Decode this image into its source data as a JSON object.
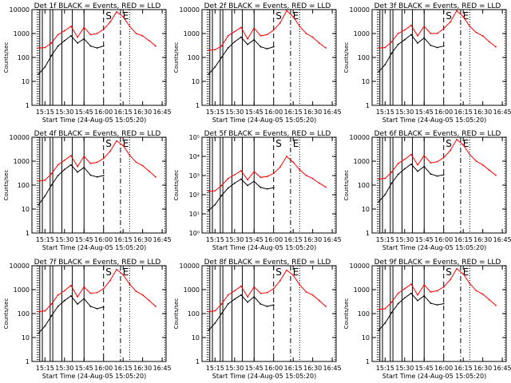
{
  "chart_data": [
    {
      "type": "line",
      "title": "Det 1f BLACK = Events, RED = LLD",
      "xlabel": "Start Time (24-Aug-05 15:05:20)",
      "ylabel": "Counts/sec",
      "yscale": "log",
      "yticks": [
        "1",
        "10",
        "100",
        "1000",
        "10000"
      ],
      "xticks": [
        "15:15",
        "15:30",
        "15:45",
        "16:00",
        "16:15",
        "16:30",
        "16:45"
      ],
      "markers": [
        "S",
        "E"
      ],
      "series": [
        {
          "name": "LLD",
          "color": "#ff0000",
          "x": [
            "15:10",
            "15:15",
            "15:20",
            "15:25",
            "15:30",
            "15:35",
            "15:40",
            "15:45",
            "15:50",
            "15:55",
            "16:00",
            "16:05",
            "16:10",
            "16:15",
            "16:20",
            "16:25",
            "16:30",
            "16:35",
            "16:40"
          ],
          "y": [
            250,
            260,
            400,
            900,
            1300,
            2000,
            700,
            1800,
            900,
            1000,
            1500,
            3000,
            8000,
            5000,
            2000,
            1000,
            800,
            500,
            300
          ]
        },
        {
          "name": "Events",
          "color": "#000000",
          "x": [
            "15:10",
            "15:15",
            "15:20",
            "15:25",
            "15:30",
            "15:35",
            "15:40",
            "15:45",
            "15:50",
            "15:55",
            "16:00"
          ],
          "y": [
            20,
            40,
            120,
            300,
            500,
            800,
            400,
            600,
            300,
            250,
            300
          ]
        }
      ]
    },
    {
      "type": "line",
      "title": "Det 2f BLACK = Events, RED = LLD",
      "xlabel": "Start Time (24-Aug-05 15:05:20)",
      "ylabel": "Counts/sec",
      "yscale": "log",
      "yticks": [
        "1",
        "10",
        "100",
        "1000",
        "10000"
      ],
      "xticks": [
        "15:15",
        "15:30",
        "15:45",
        "16:00",
        "16:15",
        "16:30",
        "16:45"
      ],
      "markers": [
        "S",
        "E"
      ],
      "series": [
        {
          "name": "LLD",
          "color": "#ff0000",
          "x": [
            "15:10",
            "15:15",
            "15:20",
            "15:25",
            "15:30",
            "15:35",
            "15:40",
            "15:45",
            "15:50",
            "15:55",
            "16:00",
            "16:05",
            "16:10",
            "16:15",
            "16:20",
            "16:25",
            "16:30",
            "16:35",
            "16:40"
          ],
          "y": [
            200,
            210,
            300,
            800,
            1200,
            1800,
            600,
            1700,
            800,
            900,
            1400,
            2800,
            9000,
            5000,
            2000,
            1000,
            700,
            400,
            250
          ]
        },
        {
          "name": "Events",
          "color": "#000000",
          "x": [
            "15:10",
            "15:15",
            "15:20",
            "15:25",
            "15:30",
            "15:35",
            "15:40",
            "15:45",
            "15:50",
            "15:55",
            "16:00"
          ],
          "y": [
            20,
            40,
            100,
            250,
            450,
            700,
            350,
            550,
            280,
            230,
            280
          ]
        }
      ]
    },
    {
      "type": "line",
      "title": "Det 3f BLACK = Events, RED = LLD",
      "xlabel": "Start Time (24-Aug-05 15:05:20)",
      "ylabel": "Counts/sec",
      "yscale": "log",
      "yticks": [
        "1",
        "10",
        "100",
        "1000",
        "10000"
      ],
      "xticks": [
        "15:15",
        "15:30",
        "15:45",
        "16:00",
        "16:15",
        "16:30",
        "16:45"
      ],
      "markers": [
        "S",
        "E"
      ],
      "series": [
        {
          "name": "LLD",
          "color": "#ff0000",
          "x": [
            "15:10",
            "15:15",
            "15:20",
            "15:25",
            "15:30",
            "15:35",
            "15:40",
            "15:45",
            "15:50",
            "15:55",
            "16:00",
            "16:05",
            "16:10",
            "16:15",
            "16:20",
            "16:25",
            "16:30",
            "16:35",
            "16:40"
          ],
          "y": [
            250,
            260,
            450,
            1000,
            1400,
            2200,
            800,
            2000,
            1000,
            1000,
            1600,
            3000,
            9000,
            5000,
            2000,
            1100,
            800,
            450,
            280
          ]
        },
        {
          "name": "Events",
          "color": "#000000",
          "x": [
            "15:10",
            "15:15",
            "15:20",
            "15:25",
            "15:30",
            "15:35",
            "15:40",
            "15:45",
            "15:50",
            "15:55",
            "16:00"
          ],
          "y": [
            25,
            50,
            150,
            350,
            550,
            900,
            400,
            650,
            320,
            260,
            300
          ]
        }
      ]
    },
    {
      "type": "line",
      "title": "Det 4f BLACK = Events, RED = LLD",
      "xlabel": "Start Time (24-Aug-05 15:05:20)",
      "ylabel": "Counts/sec",
      "yscale": "log",
      "yticks": [
        "1",
        "10",
        "100",
        "1000",
        "10000"
      ],
      "xticks": [
        "15:15",
        "15:30",
        "15:45",
        "16:00",
        "16:15",
        "16:30",
        "16:45"
      ],
      "markers": [
        "S",
        "E"
      ],
      "series": [
        {
          "name": "LLD",
          "color": "#ff0000",
          "x": [
            "15:10",
            "15:15",
            "15:20",
            "15:25",
            "15:30",
            "15:35",
            "15:40",
            "15:45",
            "15:50",
            "15:55",
            "16:00",
            "16:05",
            "16:10",
            "16:15",
            "16:20",
            "16:25",
            "16:30",
            "16:35",
            "16:40"
          ],
          "y": [
            150,
            160,
            300,
            700,
            1100,
            1700,
            600,
            1600,
            800,
            900,
            1300,
            2600,
            7000,
            4500,
            1800,
            900,
            650,
            380,
            220
          ]
        },
        {
          "name": "Events",
          "color": "#000000",
          "x": [
            "15:10",
            "15:15",
            "15:20",
            "15:25",
            "15:30",
            "15:35",
            "15:40",
            "15:45",
            "15:50",
            "15:55",
            "16:00"
          ],
          "y": [
            15,
            35,
            100,
            250,
            450,
            700,
            350,
            550,
            260,
            220,
            250
          ]
        }
      ]
    },
    {
      "type": "line",
      "title": "Det 5f BLACK = Events, RED = LLD",
      "xlabel": "Start Time (24-Aug-05 15:05:20)",
      "ylabel": "Counts/sec",
      "yscale": "log",
      "yticks": [
        "10⁰",
        "10¹",
        "10²",
        "10³",
        "10⁴",
        "10⁵"
      ],
      "xticks": [
        "15:15",
        "15:30",
        "15:45",
        "16:00",
        "16:15",
        "16:30",
        "16:45"
      ],
      "markers": [
        "S",
        "E"
      ],
      "series": [
        {
          "name": "LLD",
          "color": "#ff0000",
          "x": [
            "15:10",
            "15:15",
            "15:20",
            "15:25",
            "15:30",
            "15:35",
            "15:40",
            "15:45",
            "15:50",
            "15:55",
            "16:00",
            "16:05",
            "16:10",
            "16:15",
            "16:20",
            "16:25",
            "16:30",
            "16:35",
            "16:40"
          ],
          "y": [
            150,
            160,
            300,
            700,
            1100,
            1800,
            600,
            1600,
            800,
            900,
            1300,
            2800,
            10000,
            5000,
            2000,
            1000,
            700,
            400,
            250
          ]
        },
        {
          "name": "Events",
          "color": "#000000",
          "x": [
            "15:10",
            "15:15",
            "15:20",
            "15:25",
            "15:30",
            "15:35",
            "15:40",
            "15:45",
            "15:50",
            "15:55",
            "16:00"
          ],
          "y": [
            15,
            30,
            90,
            220,
            400,
            650,
            300,
            500,
            240,
            200,
            230
          ]
        }
      ]
    },
    {
      "type": "line",
      "title": "Det 6f BLACK = Events, RED = LLD",
      "xlabel": "Start Time (24-Aug-05 15:05:20)",
      "ylabel": "Counts/sec",
      "yscale": "log",
      "yticks": [
        "1",
        "10",
        "100",
        "1000",
        "10000"
      ],
      "xticks": [
        "15:15",
        "15:30",
        "15:45",
        "16:00",
        "16:15",
        "16:30",
        "16:45"
      ],
      "markers": [
        "S",
        "E"
      ],
      "series": [
        {
          "name": "LLD",
          "color": "#ff0000",
          "x": [
            "15:10",
            "15:15",
            "15:20",
            "15:25",
            "15:30",
            "15:35",
            "15:40",
            "15:45",
            "15:50",
            "15:55",
            "16:00",
            "16:05",
            "16:10",
            "16:15",
            "16:20",
            "16:25",
            "16:30",
            "16:35",
            "16:40"
          ],
          "y": [
            180,
            190,
            350,
            800,
            1200,
            1900,
            700,
            1700,
            850,
            950,
            1400,
            2800,
            8000,
            4800,
            1900,
            1000,
            700,
            420,
            260
          ]
        },
        {
          "name": "Events",
          "color": "#000000",
          "x": [
            "15:10",
            "15:15",
            "15:20",
            "15:25",
            "15:30",
            "15:35",
            "15:40",
            "15:45",
            "15:50",
            "15:55",
            "16:00"
          ],
          "y": [
            20,
            40,
            120,
            280,
            480,
            750,
            380,
            600,
            290,
            240,
            270
          ]
        }
      ]
    },
    {
      "type": "line",
      "title": "Det 7f BLACK = Events, RED = LLD",
      "xlabel": "Start Time (24-Aug-05 15:05:20)",
      "ylabel": "Counts/sec",
      "yscale": "log",
      "yticks": [
        "1",
        "10",
        "100",
        "1000",
        "10000"
      ],
      "xticks": [
        "15:15",
        "15:30",
        "15:45",
        "16:00",
        "16:15",
        "16:30",
        "16:45"
      ],
      "markers": [
        "S",
        "E"
      ],
      "series": [
        {
          "name": "LLD",
          "color": "#ff0000",
          "x": [
            "15:10",
            "15:15",
            "15:20",
            "15:25",
            "15:30",
            "15:35",
            "15:40",
            "15:45",
            "15:50",
            "15:55",
            "16:00",
            "16:05",
            "16:10",
            "16:15",
            "16:20",
            "16:25",
            "16:30",
            "16:35",
            "16:40"
          ],
          "y": [
            120,
            130,
            250,
            600,
            900,
            1500,
            500,
            1300,
            700,
            750,
            1100,
            2400,
            7000,
            4200,
            1700,
            850,
            600,
            350,
            200
          ]
        },
        {
          "name": "Events",
          "color": "#000000",
          "x": [
            "15:10",
            "15:15",
            "15:20",
            "15:25",
            "15:30",
            "15:35",
            "15:40",
            "15:45",
            "15:50",
            "15:55",
            "16:00"
          ],
          "y": [
            15,
            30,
            80,
            200,
            350,
            550,
            250,
            420,
            200,
            160,
            190
          ]
        }
      ]
    },
    {
      "type": "line",
      "title": "Det 8f BLACK = Events, RED = LLD",
      "xlabel": "Start Time (24-Aug-05 15:05:20)",
      "ylabel": "Counts/sec",
      "yscale": "log",
      "yticks": [
        "1",
        "10",
        "100",
        "1000",
        "10000"
      ],
      "xticks": [
        "15:15",
        "15:30",
        "15:45",
        "16:00",
        "16:15",
        "16:30",
        "16:45"
      ],
      "markers": [
        "S",
        "E"
      ],
      "series": [
        {
          "name": "LLD",
          "color": "#ff0000",
          "x": [
            "15:10",
            "15:15",
            "15:20",
            "15:25",
            "15:30",
            "15:35",
            "15:40",
            "15:45",
            "15:50",
            "15:55",
            "16:00",
            "16:05",
            "16:10",
            "16:15",
            "16:20",
            "16:25",
            "16:30",
            "16:35",
            "16:40"
          ],
          "y": [
            120,
            130,
            250,
            600,
            900,
            1400,
            500,
            1300,
            700,
            750,
            1100,
            2400,
            6500,
            4000,
            1600,
            800,
            600,
            350,
            200
          ]
        },
        {
          "name": "Events",
          "color": "#000000",
          "x": [
            "15:10",
            "15:15",
            "15:20",
            "15:25",
            "15:30",
            "15:35",
            "15:40",
            "15:45",
            "15:50",
            "15:55",
            "16:00"
          ],
          "y": [
            20,
            40,
            100,
            250,
            400,
            600,
            300,
            500,
            250,
            200,
            230
          ]
        }
      ]
    },
    {
      "type": "line",
      "title": "Det 9f BLACK = Events, RED = LLD",
      "xlabel": "Start Time (24-Aug-05 15:05:20)",
      "ylabel": "Counts/sec",
      "yscale": "log",
      "yticks": [
        "1",
        "10",
        "100",
        "1000",
        "10000"
      ],
      "xticks": [
        "15:15",
        "15:30",
        "15:45",
        "16:00",
        "16:15",
        "16:30",
        "16:45"
      ],
      "markers": [
        "S",
        "E"
      ],
      "series": [
        {
          "name": "LLD",
          "color": "#ff0000",
          "x": [
            "15:10",
            "15:15",
            "15:20",
            "15:25",
            "15:30",
            "15:35",
            "15:40",
            "15:45",
            "15:50",
            "15:55",
            "16:00",
            "16:05",
            "16:10",
            "16:15",
            "16:20",
            "16:25",
            "16:30",
            "16:35",
            "16:40"
          ],
          "y": [
            150,
            160,
            300,
            700,
            1100,
            1700,
            600,
            1600,
            800,
            900,
            1300,
            2600,
            7500,
            4500,
            1800,
            900,
            650,
            380,
            220
          ]
        },
        {
          "name": "Events",
          "color": "#000000",
          "x": [
            "15:10",
            "15:15",
            "15:20",
            "15:25",
            "15:30",
            "15:35",
            "15:40",
            "15:45",
            "15:50",
            "15:55",
            "16:00"
          ],
          "y": [
            20,
            40,
            110,
            260,
            450,
            700,
            350,
            550,
            270,
            230,
            260
          ]
        }
      ]
    }
  ]
}
